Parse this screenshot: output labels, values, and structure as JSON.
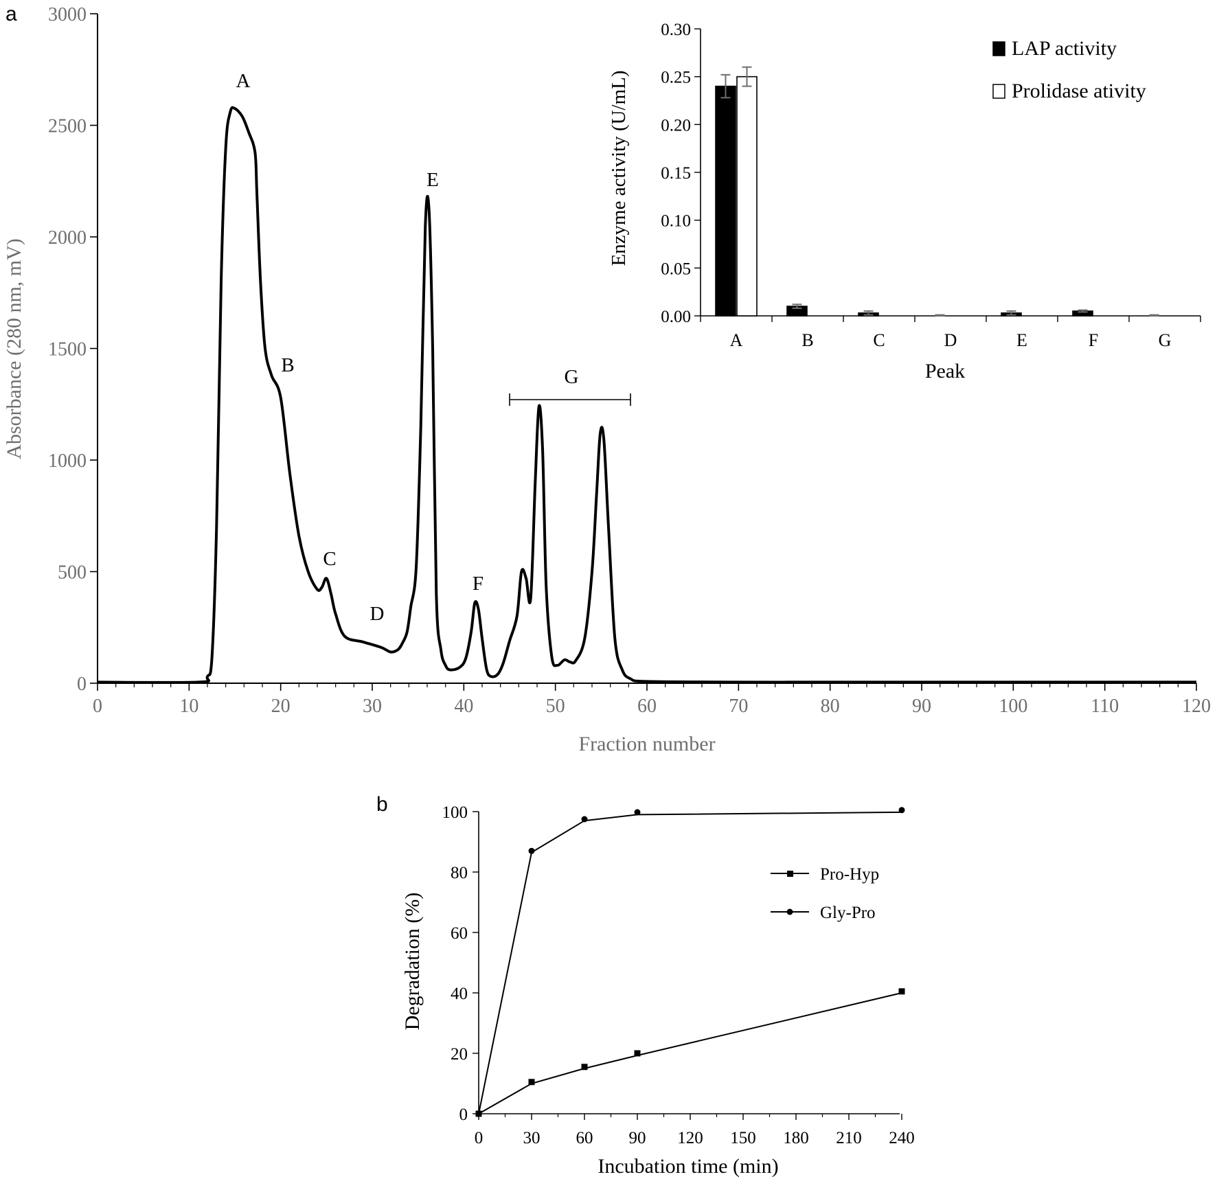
{
  "chart_data": [
    {
      "panel_label": "a",
      "type": "line",
      "xlabel": "Fraction number",
      "ylabel": "Absorbance (280 nm, mV)",
      "xlim": [
        0,
        120
      ],
      "ylim": [
        0,
        3000
      ],
      "xticks": [
        "0",
        "10",
        "20",
        "30",
        "40",
        "50",
        "60",
        "70",
        "80",
        "90",
        "100",
        "110",
        "120"
      ],
      "yticks": [
        "0",
        "500",
        "1000",
        "1500",
        "2000",
        "2500",
        "3000"
      ],
      "series": [
        {
          "x": [
            0,
            11,
            12,
            12.5,
            13,
            13.5,
            14,
            14.5,
            15,
            15.8,
            16.5,
            17.2,
            17.4,
            17.8,
            18.3,
            19,
            20,
            21,
            22,
            23,
            24,
            24.5,
            25,
            25.5,
            26,
            27,
            29,
            31,
            32,
            32.8,
            33.3,
            33.8,
            34.2,
            34.8,
            35.3,
            35.8,
            36.2,
            36.6,
            37,
            37.5,
            38,
            38.5,
            39.5,
            40.2,
            40.8,
            41.2,
            41.6,
            42,
            42.5,
            43,
            43.7,
            44.3,
            45,
            45.8,
            46.3,
            46.8,
            47.3,
            47.8,
            48.2,
            48.6,
            49,
            49.6,
            50.2,
            51,
            51.6,
            52.2,
            53.2,
            54,
            54.5,
            54.9,
            55.3,
            55.8,
            56.5,
            57.3,
            58.2,
            60,
            70,
            80,
            90,
            100,
            110,
            120
          ],
          "y": [
            5,
            5,
            30,
            120,
            700,
            1800,
            2400,
            2560,
            2575,
            2540,
            2470,
            2380,
            2200,
            1800,
            1500,
            1380,
            1280,
            940,
            660,
            500,
            420,
            430,
            470,
            400,
            310,
            210,
            185,
            160,
            140,
            150,
            180,
            230,
            340,
            520,
            1150,
            2050,
            2120,
            1500,
            400,
            150,
            80,
            60,
            70,
            110,
            230,
            360,
            330,
            200,
            60,
            30,
            40,
            90,
            190,
            300,
            500,
            470,
            380,
            900,
            1240,
            1050,
            430,
            120,
            80,
            105,
            95,
            100,
            200,
            500,
            850,
            1120,
            1090,
            700,
            200,
            60,
            20,
            8,
            5,
            5,
            5,
            5,
            5,
            5
          ]
        }
      ],
      "annotations": [
        "A",
        "B",
        "C",
        "D",
        "E",
        "F",
        "G"
      ],
      "inset": {
        "type": "bar",
        "categories": [
          "A",
          "B",
          "C",
          "D",
          "E",
          "F",
          "G"
        ],
        "xlabel": "Peak",
        "ylabel": "Enzyme activity (U/mL)",
        "ylim": [
          0,
          0.3
        ],
        "yticks": [
          "0.00",
          "0.05",
          "0.10",
          "0.15",
          "0.20",
          "0.25",
          "0.30"
        ],
        "legend_position": "top-right",
        "series": [
          {
            "name": "LAP activity",
            "fill": "#000000",
            "values": [
              0.24,
              0.01,
              0.003,
              0.0,
              0.003,
              0.005,
              0.0
            ],
            "errors": [
              0.012,
              0.002,
              0.002,
              0.001,
              0.002,
              0.001,
              0.001
            ]
          },
          {
            "name": "Prolidase ativity",
            "fill": "#ffffff",
            "values": [
              0.25,
              0.0,
              0.0,
              0.0,
              0.0,
              0.0,
              0.0
            ],
            "errors": [
              0.01,
              0.0,
              0.0,
              0.0,
              0.0,
              0.0,
              0.0
            ]
          }
        ]
      }
    },
    {
      "panel_label": "b",
      "type": "line",
      "xlabel": "Incubation time (min)",
      "ylabel": "Degradation  (%)",
      "x": [
        0,
        30,
        60,
        90,
        240
      ],
      "xticks": [
        "0",
        "30",
        "60",
        "90",
        "120",
        "150",
        "180",
        "210",
        "240"
      ],
      "ylim": [
        0,
        100
      ],
      "yticks": [
        "0",
        "20",
        "40",
        "60",
        "80",
        "100"
      ],
      "legend_position": "right",
      "series": [
        {
          "name": "Pro-Hyp",
          "marker": "square",
          "values": [
            0,
            10.5,
            15.5,
            20,
            40.5
          ],
          "fit": [
            0,
            10,
            15,
            19.3,
            40
          ]
        },
        {
          "name": "Gly-Pro",
          "marker": "circle",
          "values": [
            0,
            87,
            97.5,
            99.8,
            100.5
          ],
          "fit": [
            0,
            86.5,
            97,
            99,
            99.8
          ]
        }
      ]
    }
  ]
}
